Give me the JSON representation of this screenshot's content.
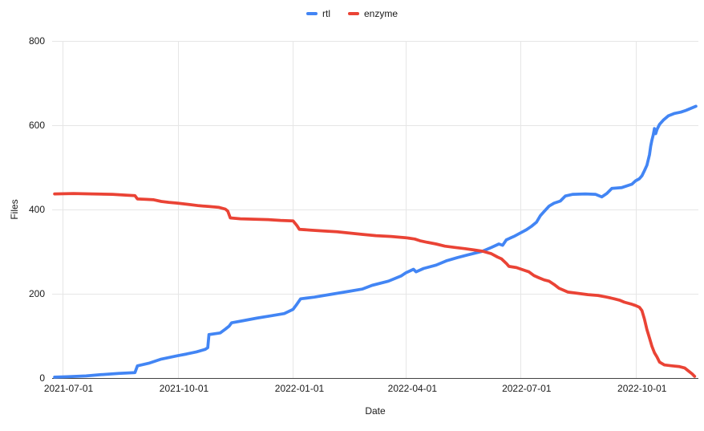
{
  "chart_data": {
    "type": "line",
    "title": "",
    "xlabel": "Date",
    "ylabel": "Files",
    "grid": true,
    "legend_position": "top",
    "ylim": [
      0,
      800
    ],
    "xlim": [
      "2021-06-23",
      "2022-11-20"
    ],
    "y_ticks": [
      0,
      200,
      400,
      600,
      800
    ],
    "x_ticks": [
      "2021-07-01",
      "2021-10-01",
      "2022-01-01",
      "2022-04-01",
      "2022-07-01",
      "2022-10-01"
    ],
    "colors": {
      "gridline": "#e6e6e6",
      "axis_line": "#424242",
      "label": "#1a1a1a",
      "background": "#ffffff"
    },
    "series": [
      {
        "name": "rtl",
        "color": "#4285f4",
        "points": [
          [
            "2021-06-25",
            2
          ],
          [
            "2021-07-05",
            3
          ],
          [
            "2021-07-20",
            5
          ],
          [
            "2021-08-01",
            8
          ],
          [
            "2021-08-15",
            11
          ],
          [
            "2021-08-28",
            13
          ],
          [
            "2021-08-30",
            29
          ],
          [
            "2021-09-08",
            35
          ],
          [
            "2021-09-18",
            45
          ],
          [
            "2021-09-26",
            50
          ],
          [
            "2021-10-01",
            53
          ],
          [
            "2021-10-08",
            57
          ],
          [
            "2021-10-16",
            62
          ],
          [
            "2021-10-23",
            68
          ],
          [
            "2021-10-25",
            72
          ],
          [
            "2021-10-26",
            103
          ],
          [
            "2021-11-04",
            107
          ],
          [
            "2021-11-08",
            116
          ],
          [
            "2021-11-11",
            123
          ],
          [
            "2021-11-13",
            131
          ],
          [
            "2021-11-22",
            136
          ],
          [
            "2021-12-03",
            142
          ],
          [
            "2021-12-15",
            148
          ],
          [
            "2021-12-25",
            153
          ],
          [
            "2022-01-01",
            163
          ],
          [
            "2022-01-04",
            175
          ],
          [
            "2022-01-07",
            188
          ],
          [
            "2022-01-18",
            192
          ],
          [
            "2022-02-01",
            199
          ],
          [
            "2022-02-15",
            206
          ],
          [
            "2022-02-25",
            211
          ],
          [
            "2022-03-05",
            220
          ],
          [
            "2022-03-18",
            230
          ],
          [
            "2022-03-28",
            242
          ],
          [
            "2022-04-01",
            250
          ],
          [
            "2022-04-07",
            258
          ],
          [
            "2022-04-09",
            252
          ],
          [
            "2022-04-15",
            260
          ],
          [
            "2022-04-25",
            268
          ],
          [
            "2022-05-03",
            278
          ],
          [
            "2022-05-12",
            286
          ],
          [
            "2022-05-20",
            292
          ],
          [
            "2022-06-01",
            301
          ],
          [
            "2022-06-08",
            310
          ],
          [
            "2022-06-14",
            318
          ],
          [
            "2022-06-17",
            315
          ],
          [
            "2022-06-20",
            328
          ],
          [
            "2022-06-26",
            336
          ],
          [
            "2022-07-01",
            344
          ],
          [
            "2022-07-06",
            352
          ],
          [
            "2022-07-10",
            360
          ],
          [
            "2022-07-14",
            370
          ],
          [
            "2022-07-17",
            385
          ],
          [
            "2022-07-20",
            395
          ],
          [
            "2022-07-24",
            408
          ],
          [
            "2022-07-28",
            415
          ],
          [
            "2022-08-02",
            420
          ],
          [
            "2022-08-06",
            432
          ],
          [
            "2022-08-12",
            436
          ],
          [
            "2022-08-22",
            437
          ],
          [
            "2022-08-30",
            436
          ],
          [
            "2022-09-04",
            430
          ],
          [
            "2022-09-08",
            438
          ],
          [
            "2022-09-12",
            450
          ],
          [
            "2022-09-20",
            452
          ],
          [
            "2022-09-28",
            460
          ],
          [
            "2022-10-01",
            468
          ],
          [
            "2022-10-04",
            473
          ],
          [
            "2022-10-06",
            480
          ],
          [
            "2022-10-08",
            492
          ],
          [
            "2022-10-10",
            505
          ],
          [
            "2022-10-12",
            530
          ],
          [
            "2022-10-13",
            550
          ],
          [
            "2022-10-14",
            565
          ],
          [
            "2022-10-15",
            577
          ],
          [
            "2022-10-16",
            592
          ],
          [
            "2022-10-17",
            580
          ],
          [
            "2022-10-18",
            590
          ],
          [
            "2022-10-20",
            602
          ],
          [
            "2022-10-23",
            612
          ],
          [
            "2022-10-27",
            622
          ],
          [
            "2022-11-01",
            628
          ],
          [
            "2022-11-06",
            631
          ],
          [
            "2022-11-10",
            635
          ],
          [
            "2022-11-14",
            640
          ],
          [
            "2022-11-18",
            645
          ]
        ]
      },
      {
        "name": "enzyme",
        "color": "#ea4335",
        "points": [
          [
            "2021-06-25",
            437
          ],
          [
            "2021-07-10",
            438
          ],
          [
            "2021-07-25",
            437
          ],
          [
            "2021-08-10",
            436
          ],
          [
            "2021-08-22",
            434
          ],
          [
            "2021-08-28",
            433
          ],
          [
            "2021-08-30",
            425
          ],
          [
            "2021-09-06",
            424
          ],
          [
            "2021-09-12",
            423
          ],
          [
            "2021-09-18",
            419
          ],
          [
            "2021-09-24",
            417
          ],
          [
            "2021-10-01",
            415
          ],
          [
            "2021-10-10",
            412
          ],
          [
            "2021-10-18",
            409
          ],
          [
            "2021-10-26",
            407
          ],
          [
            "2021-11-03",
            405
          ],
          [
            "2021-11-08",
            401
          ],
          [
            "2021-11-10",
            396
          ],
          [
            "2021-11-12",
            380
          ],
          [
            "2021-11-20",
            378
          ],
          [
            "2021-12-01",
            377
          ],
          [
            "2021-12-12",
            376
          ],
          [
            "2021-12-22",
            374
          ],
          [
            "2022-01-01",
            373
          ],
          [
            "2022-01-04",
            362
          ],
          [
            "2022-01-06",
            353
          ],
          [
            "2022-01-15",
            351
          ],
          [
            "2022-01-25",
            349
          ],
          [
            "2022-02-05",
            347
          ],
          [
            "2022-02-15",
            344
          ],
          [
            "2022-02-25",
            341
          ],
          [
            "2022-03-08",
            338
          ],
          [
            "2022-03-20",
            336
          ],
          [
            "2022-04-01",
            333
          ],
          [
            "2022-04-08",
            330
          ],
          [
            "2022-04-12",
            326
          ],
          [
            "2022-04-18",
            322
          ],
          [
            "2022-04-25",
            318
          ],
          [
            "2022-05-02",
            313
          ],
          [
            "2022-05-10",
            310
          ],
          [
            "2022-05-18",
            307
          ],
          [
            "2022-05-25",
            304
          ],
          [
            "2022-06-01",
            301
          ],
          [
            "2022-06-08",
            295
          ],
          [
            "2022-06-13",
            287
          ],
          [
            "2022-06-16",
            283
          ],
          [
            "2022-06-20",
            272
          ],
          [
            "2022-06-22",
            265
          ],
          [
            "2022-06-28",
            262
          ],
          [
            "2022-07-01",
            259
          ],
          [
            "2022-07-05",
            255
          ],
          [
            "2022-07-08",
            252
          ],
          [
            "2022-07-12",
            243
          ],
          [
            "2022-07-16",
            238
          ],
          [
            "2022-07-20",
            233
          ],
          [
            "2022-07-24",
            230
          ],
          [
            "2022-07-28",
            222
          ],
          [
            "2022-08-01",
            213
          ],
          [
            "2022-08-08",
            204
          ],
          [
            "2022-08-16",
            201
          ],
          [
            "2022-08-24",
            198
          ],
          [
            "2022-09-01",
            196
          ],
          [
            "2022-09-08",
            192
          ],
          [
            "2022-09-14",
            188
          ],
          [
            "2022-09-18",
            185
          ],
          [
            "2022-09-22",
            180
          ],
          [
            "2022-09-28",
            175
          ],
          [
            "2022-10-01",
            172
          ],
          [
            "2022-10-04",
            168
          ],
          [
            "2022-10-06",
            160
          ],
          [
            "2022-10-08",
            140
          ],
          [
            "2022-10-10",
            115
          ],
          [
            "2022-10-12",
            95
          ],
          [
            "2022-10-14",
            75
          ],
          [
            "2022-10-16",
            60
          ],
          [
            "2022-10-18",
            50
          ],
          [
            "2022-10-20",
            38
          ],
          [
            "2022-10-24",
            31
          ],
          [
            "2022-10-30",
            29
          ],
          [
            "2022-11-05",
            27
          ],
          [
            "2022-11-09",
            24
          ],
          [
            "2022-11-12",
            17
          ],
          [
            "2022-11-15",
            10
          ],
          [
            "2022-11-17",
            4
          ]
        ]
      }
    ]
  }
}
